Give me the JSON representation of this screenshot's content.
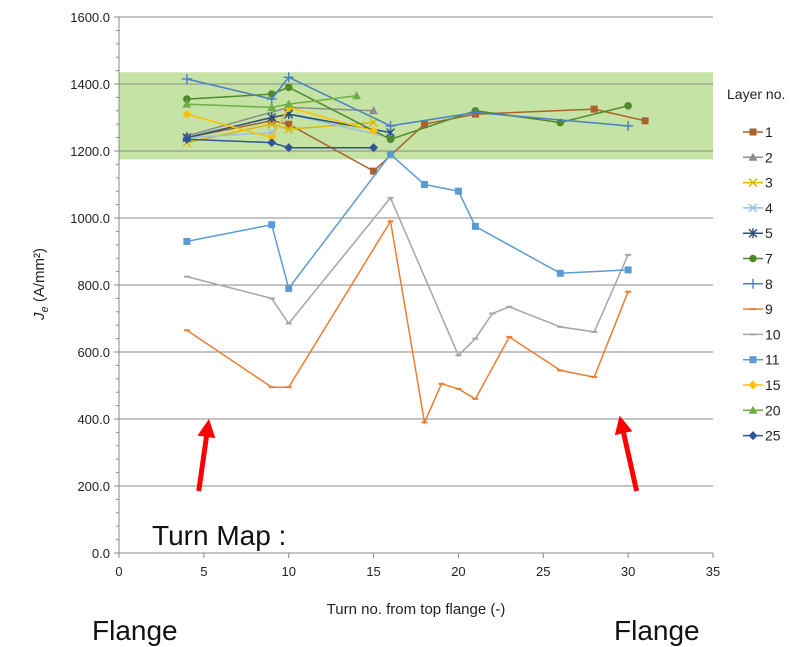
{
  "chart_data": {
    "type": "line",
    "xlabel": "Turn no. from top flange (-)",
    "ylabel_main": "J",
    "ylabel_sub": "e",
    "ylabel_rest": " (A/mm²)",
    "xlim": [
      0,
      35
    ],
    "ylim": [
      0,
      1600
    ],
    "x_ticks": [
      0,
      5,
      10,
      15,
      20,
      25,
      30,
      35
    ],
    "x_tick_labels": [
      "0",
      "5",
      "10",
      "15",
      "20",
      "25",
      "30",
      "35"
    ],
    "y_ticks": [
      0,
      200,
      400,
      600,
      800,
      1000,
      1200,
      1400,
      1600
    ],
    "y_tick_labels": [
      "0.0",
      "200.0",
      "400.0",
      "600.0",
      "800.0",
      "1000.0",
      "1200.0",
      "1400.0",
      "1600.0"
    ],
    "gridlines": "horizontal",
    "band": {
      "y_from": 1175,
      "y_to": 1435,
      "color": "#c6e3a6"
    },
    "legend_title": "Layer no.",
    "legend_position": "right",
    "series": [
      {
        "name": "1",
        "color": "#a9622a",
        "marker": "square",
        "x": [
          4,
          9,
          10,
          15,
          18,
          21,
          28,
          31
        ],
        "y": [
          1240,
          1290,
          1280,
          1140,
          1280,
          1310,
          1325,
          1290
        ]
      },
      {
        "name": "2",
        "color": "#8c8c8c",
        "marker": "triangle",
        "x": [
          4,
          10,
          15
        ],
        "y": [
          1245,
          1330,
          1320
        ]
      },
      {
        "name": "3",
        "color": "#d9b900",
        "marker": "x",
        "x": [
          4,
          9,
          10,
          15
        ],
        "y": [
          1225,
          1280,
          1265,
          1285
        ]
      },
      {
        "name": "4",
        "color": "#9cbfe0",
        "marker": "x",
        "x": [
          4,
          9,
          10,
          16
        ],
        "y": [
          1240,
          1255,
          1310,
          1240
        ]
      },
      {
        "name": "5",
        "color": "#2e4f7a",
        "marker": "star",
        "x": [
          4,
          9,
          10,
          16
        ],
        "y": [
          1240,
          1300,
          1310,
          1255
        ]
      },
      {
        "name": "7",
        "color": "#4f8a2a",
        "marker": "circle",
        "x": [
          4,
          9,
          10,
          16,
          21,
          26,
          30
        ],
        "y": [
          1355,
          1370,
          1390,
          1235,
          1320,
          1285,
          1335
        ]
      },
      {
        "name": "8",
        "color": "#4a7fc1",
        "marker": "plus",
        "x": [
          4,
          9,
          10,
          16,
          21,
          30
        ],
        "y": [
          1415,
          1355,
          1420,
          1275,
          1315,
          1275
        ]
      },
      {
        "name": "9",
        "color": "#ed7d31",
        "marker": "dash",
        "x": [
          4,
          9,
          10,
          16,
          18,
          19,
          20,
          21,
          23,
          26,
          28,
          30
        ],
        "y": [
          665,
          495,
          495,
          990,
          390,
          505,
          490,
          460,
          645,
          545,
          525,
          780
        ]
      },
      {
        "name": "10",
        "color": "#a5a5a5",
        "marker": "dash",
        "x": [
          4,
          9,
          10,
          16,
          20,
          21,
          22,
          23,
          26,
          28,
          30
        ],
        "y": [
          825,
          760,
          685,
          1060,
          590,
          640,
          715,
          735,
          675,
          660,
          890
        ]
      },
      {
        "name": "11",
        "color": "#5b9bd5",
        "marker": "square",
        "x": [
          4,
          9,
          10,
          16,
          18,
          20,
          21,
          26,
          30
        ],
        "y": [
          930,
          980,
          790,
          1190,
          1100,
          1080,
          975,
          835,
          845
        ]
      },
      {
        "name": "15",
        "color": "#ffc000",
        "marker": "diamond",
        "x": [
          4,
          9,
          10,
          15
        ],
        "y": [
          1310,
          1240,
          1330,
          1260
        ]
      },
      {
        "name": "20",
        "color": "#70ad47",
        "marker": "triangle",
        "x": [
          4,
          9,
          10,
          14
        ],
        "y": [
          1340,
          1330,
          1340,
          1365
        ]
      },
      {
        "name": "25",
        "color": "#2f5597",
        "marker": "diamond",
        "x": [
          4,
          9,
          10,
          15
        ],
        "y": [
          1235,
          1225,
          1210,
          1210
        ]
      }
    ],
    "annotations": {
      "turn_map": "Turn Map :",
      "flange_left": "Flange",
      "flange_right": "Flange",
      "arrow_color": "#ff0000",
      "arrows": [
        {
          "from": [
            4.7,
            185
          ],
          "to": [
            5.3,
            400
          ]
        },
        {
          "from": [
            30.5,
            185
          ],
          "to": [
            29.5,
            410
          ]
        }
      ]
    }
  }
}
